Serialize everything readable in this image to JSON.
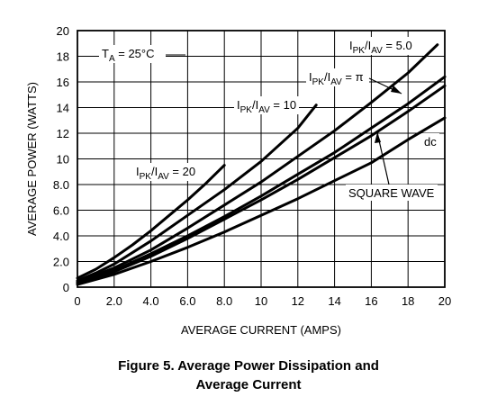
{
  "caption": {
    "line1": "Figure 5. Average Power Dissipation and",
    "line2": "Average Current"
  },
  "chart_data": {
    "type": "line",
    "title": "",
    "xlabel": "AVERAGE CURRENT (AMPS)",
    "ylabel": "AVERAGE POWER (WATTS)",
    "xlim": [
      0,
      20
    ],
    "ylim": [
      0,
      20
    ],
    "x_ticks": [
      "0",
      "2.0",
      "4.0",
      "6.0",
      "8.0",
      "10",
      "12",
      "14",
      "16",
      "18",
      "20"
    ],
    "y_ticks": [
      "0",
      "2.0",
      "4.0",
      "6.0",
      "8.0",
      "10",
      "12",
      "14",
      "16",
      "18",
      "20"
    ],
    "grid": true,
    "temperature_label": {
      "main": "T",
      "sub": "A",
      "rest": " = 25°C"
    },
    "series": [
      {
        "name": "IPK/IAV = 20",
        "label_main1": "I",
        "label_sub1": "PK",
        "label_mid": "/I",
        "label_sub2": "AV",
        "label_rest": " = 20",
        "x": [
          0,
          1,
          2,
          3,
          4,
          5,
          6,
          7,
          8
        ],
        "y": [
          0.7,
          1.4,
          2.3,
          3.3,
          4.4,
          5.6,
          6.8,
          8.1,
          9.5
        ]
      },
      {
        "name": "IPK/IAV = 10",
        "label_main1": "I",
        "label_sub1": "PK",
        "label_mid": "/I",
        "label_sub2": "AV",
        "label_rest": " = 10",
        "x": [
          0,
          1,
          2,
          4,
          6,
          8,
          10,
          12,
          13
        ],
        "y": [
          0.5,
          1.1,
          1.8,
          3.6,
          5.6,
          7.6,
          9.8,
          12.4,
          14.2
        ]
      },
      {
        "name": "IPK/IAV = 5.0",
        "label_main1": "I",
        "label_sub1": "PK",
        "label_mid": "/I",
        "label_sub2": "AV",
        "label_rest": " = 5.0",
        "x": [
          0,
          2,
          4,
          6,
          8,
          10,
          12,
          14,
          16,
          18,
          19.6
        ],
        "y": [
          0.4,
          1.5,
          2.9,
          4.6,
          6.4,
          8.2,
          10.2,
          12.2,
          14.4,
          16.7,
          18.9
        ]
      },
      {
        "name": "IPK/IAV = π",
        "label_main1": "I",
        "label_sub1": "PK",
        "label_mid": "/I",
        "label_sub2": "AV",
        "label_rest": " = π",
        "x": [
          0,
          2,
          4,
          6,
          8,
          10,
          12,
          14,
          16,
          18,
          20
        ],
        "y": [
          0.3,
          1.3,
          2.6,
          4.0,
          5.5,
          7.1,
          8.8,
          10.5,
          12.4,
          14.3,
          16.4
        ]
      },
      {
        "name": "SQUARE WAVE",
        "label_main1": "SQUARE WAVE",
        "x": [
          0,
          2,
          4,
          6,
          8,
          10,
          12,
          14,
          16,
          18,
          20
        ],
        "y": [
          0.3,
          1.2,
          2.4,
          3.8,
          5.3,
          6.8,
          8.4,
          10.1,
          11.8,
          13.7,
          15.7
        ]
      },
      {
        "name": "dc",
        "label_main1": "dc",
        "x": [
          0,
          2,
          4,
          6,
          8,
          10,
          12,
          14,
          16,
          18,
          20
        ],
        "y": [
          0.2,
          1.0,
          2.0,
          3.1,
          4.3,
          5.6,
          6.9,
          8.3,
          9.7,
          11.5,
          13.2
        ]
      }
    ]
  }
}
